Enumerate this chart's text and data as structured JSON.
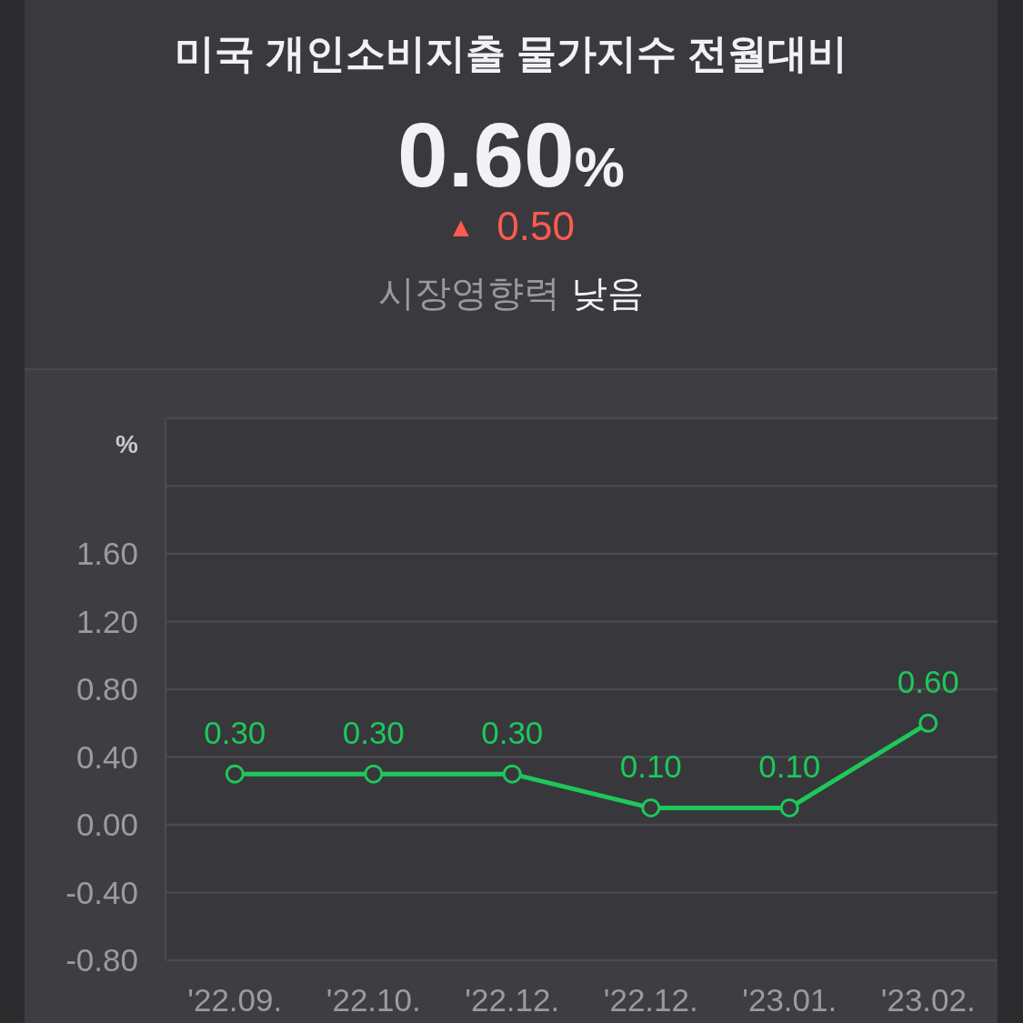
{
  "chart_data": {
    "type": "line",
    "title": "미국 개인소비지출 물가지수 전월대비",
    "ylabel": "%",
    "annotations": [
      "0.60%",
      "▲ 0.50",
      "시장영향력 낮음"
    ],
    "categories": [
      "'22.09.",
      "'22.10.",
      "'22.12.",
      "'22.12.",
      "'23.01.",
      "'23.02."
    ],
    "series": [
      {
        "color": "#1ec75a",
        "values": [
          0.3,
          0.3,
          0.3,
          0.1,
          0.1,
          0.6
        ],
        "value_labels": [
          "0.30",
          "0.30",
          "0.30",
          "0.10",
          "0.10",
          "0.60"
        ]
      }
    ],
    "ylim": [
      -0.8,
      2.4
    ],
    "yticks": [
      {
        "value": -0.8,
        "label": "-0.80"
      },
      {
        "value": -0.4,
        "label": "-0.40"
      },
      {
        "value": 0,
        "label": "0.00"
      },
      {
        "value": 0.4,
        "label": "0.40"
      },
      {
        "value": 0.8,
        "label": "0.80"
      },
      {
        "value": 1.2,
        "label": "1.20"
      },
      {
        "value": 1.6,
        "label": "1.60"
      },
      {
        "value": 2.0,
        "label": null
      },
      {
        "value": 2.4,
        "label": null
      }
    ],
    "grid": "y",
    "marker": "circle",
    "line_style": "solid"
  }
}
